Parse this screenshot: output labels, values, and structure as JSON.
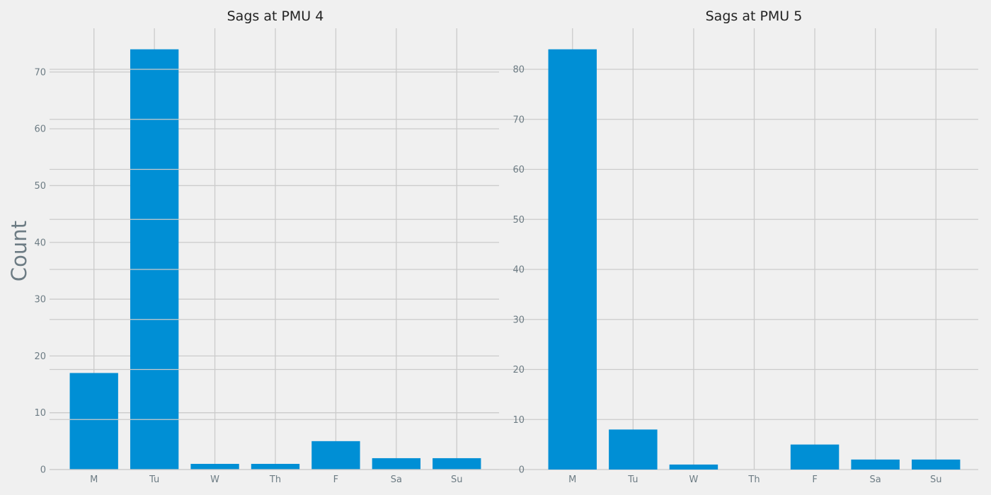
{
  "chart_data": [
    {
      "type": "bar",
      "title": "Sags at PMU 4",
      "ylabel": "Count",
      "xlabel": "",
      "categories": [
        "M",
        "Tu",
        "W",
        "Th",
        "F",
        "Sa",
        "Su"
      ],
      "values": [
        17,
        74,
        1,
        1,
        5,
        2,
        2
      ],
      "ylim": [
        0,
        77.7
      ],
      "yticks": [
        0,
        10,
        20,
        30,
        40,
        50,
        60,
        70
      ],
      "grid": true,
      "color": "#008fd5"
    },
    {
      "type": "bar",
      "title": "Sags at PMU 5",
      "ylabel": "",
      "xlabel": "",
      "categories": [
        "M",
        "Tu",
        "W",
        "Th",
        "F",
        "Sa",
        "Su"
      ],
      "values": [
        84,
        8,
        1,
        0,
        5,
        2,
        2
      ],
      "ylim": [
        0,
        88.2
      ],
      "yticks": [
        0,
        10,
        20,
        30,
        40,
        50,
        60,
        70,
        80
      ],
      "grid": true,
      "color": "#008fd5"
    }
  ]
}
